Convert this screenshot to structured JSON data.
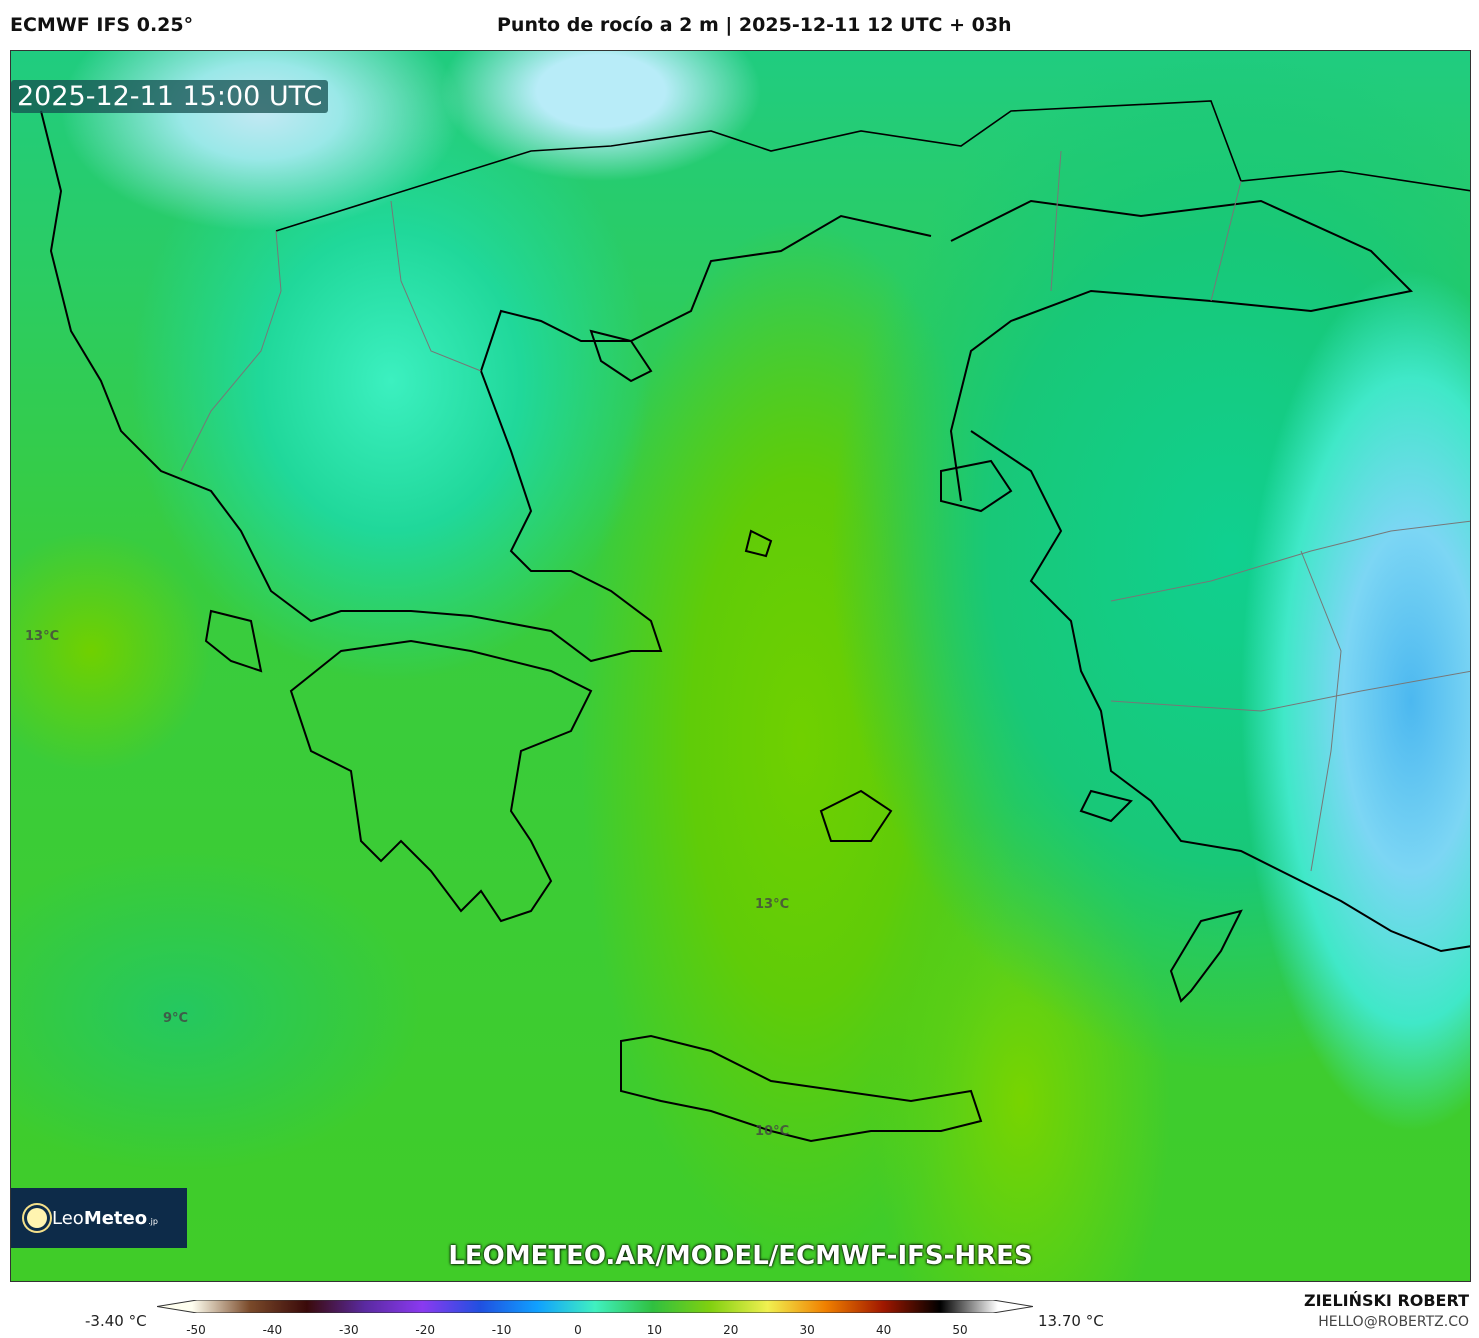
{
  "header": {
    "model": "ECMWF IFS 0.25°",
    "title": "Punto de rocío a 2 m | 2025-12-11 12 UTC + 03h"
  },
  "map": {
    "timestamp": "2025-12-11 15:00 UTC",
    "labels": [
      "13°C",
      "13°C",
      "9°C",
      "10°C"
    ],
    "logo": {
      "name": "LeoMeteo",
      "suffix": ".jp"
    },
    "url": "LEOMETEO.AR/MODEL/ECMWF-IFS-HRES"
  },
  "colorbar": {
    "min_label": "-3.40 °C",
    "max_label": "13.70 °C",
    "ticks": [
      "-50",
      "-40",
      "-30",
      "-20",
      "-10",
      "0",
      "10",
      "20",
      "30",
      "40",
      "50"
    ],
    "colors": [
      "#fffff0",
      "#7a4a2a",
      "#3a0a0a",
      "#5a2aa0",
      "#8a3af0",
      "#2050e0",
      "#10a0ff",
      "#40f0c0",
      "#30c040",
      "#80d010",
      "#f0f050",
      "#f08000",
      "#a01800",
      "#000000",
      "#ffffff"
    ]
  },
  "author": {
    "name": "ZIELIŃSKI ROBERT",
    "email": "HELLO@ROBERTZ.CO"
  }
}
